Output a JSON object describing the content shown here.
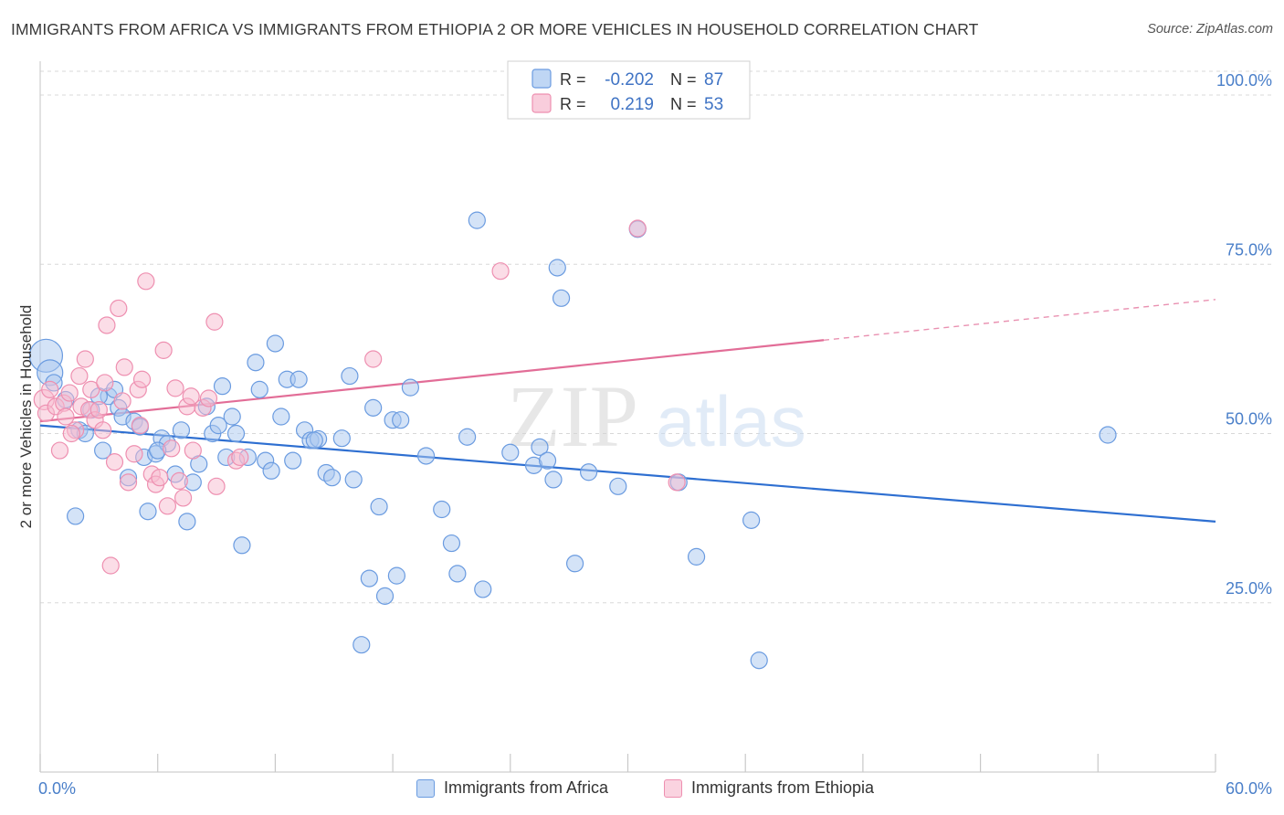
{
  "title": "IMMIGRANTS FROM AFRICA VS IMMIGRANTS FROM ETHIOPIA 2 OR MORE VEHICLES IN HOUSEHOLD CORRELATION CHART",
  "source": "Source: ZipAtlas.com",
  "watermark": {
    "zip": "ZIP",
    "atlas": "atlas"
  },
  "colors": {
    "africa_fill": "#a9c8f0",
    "africa_stroke": "#6a9be0",
    "africa_line": "#2e6fd1",
    "ethiopia_fill": "#f7bcd0",
    "ethiopia_stroke": "#ee8fb0",
    "ethiopia_line": "#e26d97",
    "grid": "#d8d8d8",
    "tick_text": "#4a7fc9"
  },
  "legend": {
    "r_label": "R =",
    "n_label": "N =",
    "africa": {
      "r": "-0.202",
      "n": "87"
    },
    "ethiopia": {
      "r": "0.219",
      "n": "53"
    }
  },
  "chart_data": {
    "type": "scatter",
    "xlabel": "",
    "ylabel": "2 or more Vehicles in Household",
    "xlim": [
      0,
      60
    ],
    "ylim": [
      0,
      105
    ],
    "x_tick_labels": {
      "min": "0.0%",
      "max": "60.0%"
    },
    "y_ticks": [
      25,
      50,
      75,
      100
    ],
    "y_tick_labels": [
      "25.0%",
      "50.0%",
      "75.0%",
      "100.0%"
    ],
    "grid": "horizontal dashed",
    "legend_position": "top-center",
    "series": [
      {
        "name": "Immigrants from Africa",
        "trend": {
          "x0": 0,
          "y0": 51.2,
          "x1": 60,
          "y1": 37.0
        },
        "points": [
          [
            0.3,
            61.5
          ],
          [
            0.5,
            59.0
          ],
          [
            0.7,
            57.5
          ],
          [
            1.3,
            55.0
          ],
          [
            1.8,
            37.8
          ],
          [
            2.0,
            50.5
          ],
          [
            2.3,
            50.0
          ],
          [
            2.6,
            53.5
          ],
          [
            3.2,
            47.5
          ],
          [
            3.5,
            55.5
          ],
          [
            3.8,
            56.5
          ],
          [
            4.0,
            53.8
          ],
          [
            4.2,
            52.5
          ],
          [
            4.5,
            43.5
          ],
          [
            4.8,
            51.8
          ],
          [
            5.1,
            51.0
          ],
          [
            5.3,
            46.5
          ],
          [
            5.5,
            38.5
          ],
          [
            5.9,
            47.0
          ],
          [
            6.2,
            49.3
          ],
          [
            6.5,
            48.5
          ],
          [
            6.9,
            44.0
          ],
          [
            7.2,
            50.5
          ],
          [
            7.5,
            37.0
          ],
          [
            7.8,
            42.8
          ],
          [
            8.1,
            45.5
          ],
          [
            8.5,
            54.0
          ],
          [
            8.8,
            50.0
          ],
          [
            9.1,
            51.2
          ],
          [
            9.3,
            57.0
          ],
          [
            9.5,
            46.5
          ],
          [
            9.8,
            52.5
          ],
          [
            10.3,
            33.5
          ],
          [
            10.6,
            46.5
          ],
          [
            11.0,
            60.5
          ],
          [
            11.2,
            56.5
          ],
          [
            11.5,
            46.0
          ],
          [
            11.8,
            44.5
          ],
          [
            12.0,
            63.3
          ],
          [
            12.3,
            52.5
          ],
          [
            12.6,
            58.0
          ],
          [
            12.9,
            46.0
          ],
          [
            13.2,
            58.0
          ],
          [
            13.5,
            50.5
          ],
          [
            13.8,
            49.0
          ],
          [
            14.2,
            49.2
          ],
          [
            14.6,
            44.2
          ],
          [
            14.9,
            43.5
          ],
          [
            15.4,
            49.3
          ],
          [
            15.8,
            58.5
          ],
          [
            16.0,
            43.2
          ],
          [
            16.4,
            18.8
          ],
          [
            16.8,
            28.6
          ],
          [
            17.0,
            53.8
          ],
          [
            17.3,
            39.2
          ],
          [
            17.6,
            26.0
          ],
          [
            18.0,
            52.0
          ],
          [
            18.2,
            29.0
          ],
          [
            18.4,
            52.0
          ],
          [
            18.9,
            56.8
          ],
          [
            19.7,
            46.7
          ],
          [
            20.5,
            38.8
          ],
          [
            21.0,
            33.8
          ],
          [
            21.3,
            29.3
          ],
          [
            21.8,
            49.5
          ],
          [
            22.3,
            81.5
          ],
          [
            22.6,
            27.0
          ],
          [
            24.0,
            47.2
          ],
          [
            25.2,
            45.3
          ],
          [
            25.5,
            48.0
          ],
          [
            25.9,
            46.0
          ],
          [
            26.2,
            43.2
          ],
          [
            26.4,
            74.5
          ],
          [
            26.6,
            70.0
          ],
          [
            27.3,
            30.8
          ],
          [
            28.0,
            44.3
          ],
          [
            29.5,
            42.2
          ],
          [
            30.5,
            80.2
          ],
          [
            32.6,
            42.8
          ],
          [
            33.5,
            31.8
          ],
          [
            36.3,
            37.2
          ],
          [
            36.7,
            16.5
          ],
          [
            54.5,
            49.8
          ],
          [
            3.0,
            55.5
          ],
          [
            6.0,
            47.5
          ],
          [
            10.0,
            50.0
          ],
          [
            14.0,
            49.0
          ]
        ]
      },
      {
        "name": "Immigrants from Ethiopia",
        "trend": {
          "x0": 0,
          "y0": 51.8,
          "x1": 40,
          "y1": 63.8,
          "dash_to_x": 60,
          "dash_to_y": 69.8
        },
        "points": [
          [
            0.2,
            55.0
          ],
          [
            0.3,
            53.0
          ],
          [
            0.5,
            56.5
          ],
          [
            0.8,
            54.0
          ],
          [
            1.0,
            47.5
          ],
          [
            1.2,
            54.5
          ],
          [
            1.3,
            52.5
          ],
          [
            1.5,
            56.0
          ],
          [
            1.8,
            50.5
          ],
          [
            2.0,
            58.5
          ],
          [
            2.1,
            54.0
          ],
          [
            2.3,
            61.0
          ],
          [
            2.5,
            53.5
          ],
          [
            2.6,
            56.5
          ],
          [
            2.8,
            52.0
          ],
          [
            3.0,
            53.5
          ],
          [
            3.2,
            50.5
          ],
          [
            3.3,
            57.5
          ],
          [
            3.4,
            66.0
          ],
          [
            3.6,
            30.5
          ],
          [
            3.8,
            45.8
          ],
          [
            4.0,
            68.5
          ],
          [
            4.2,
            54.8
          ],
          [
            4.3,
            59.8
          ],
          [
            4.5,
            42.8
          ],
          [
            4.8,
            47.0
          ],
          [
            5.0,
            56.5
          ],
          [
            5.1,
            51.2
          ],
          [
            5.2,
            58.0
          ],
          [
            5.4,
            72.5
          ],
          [
            5.7,
            44.0
          ],
          [
            5.9,
            42.5
          ],
          [
            6.1,
            43.5
          ],
          [
            6.3,
            62.3
          ],
          [
            6.5,
            39.3
          ],
          [
            6.7,
            47.8
          ],
          [
            6.9,
            56.7
          ],
          [
            7.1,
            43.0
          ],
          [
            7.3,
            40.5
          ],
          [
            7.5,
            54.0
          ],
          [
            7.7,
            55.5
          ],
          [
            7.8,
            47.5
          ],
          [
            8.3,
            53.8
          ],
          [
            8.6,
            55.2
          ],
          [
            8.9,
            66.5
          ],
          [
            9.0,
            42.2
          ],
          [
            10.0,
            46.0
          ],
          [
            17.0,
            61.0
          ],
          [
            23.5,
            74.0
          ],
          [
            30.5,
            80.3
          ],
          [
            32.5,
            42.8
          ],
          [
            10.2,
            46.5
          ],
          [
            1.6,
            50.0
          ]
        ]
      }
    ]
  },
  "bottom_legend": {
    "africa": "Immigrants from Africa",
    "ethiopia": "Immigrants from Ethiopia"
  }
}
